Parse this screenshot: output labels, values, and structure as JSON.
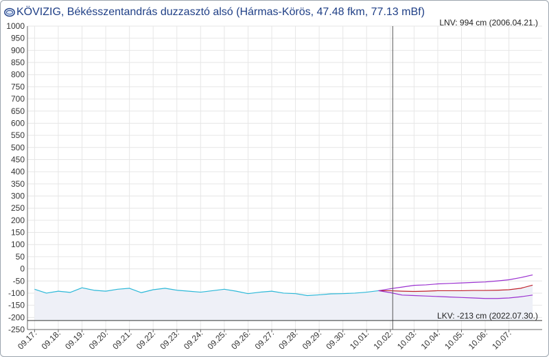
{
  "header": {
    "title": "KÖVIZIG, Békésszentandrás duzzasztó alsó (Hármas-Körös, 47.48 fkm, 77.13 mBf)"
  },
  "icons": {
    "logo": "globe-logo-icon"
  },
  "colors": {
    "observed": "#2bb8d8",
    "forecast_mid": "#c0202a",
    "forecast_band": "#9a30d0",
    "now_line": "#555555",
    "min_line": "#333333",
    "fill": "#eef0f7",
    "grid": "#e6e6e6"
  },
  "chart_data": {
    "type": "line",
    "title": "KÖVIZIG, Békésszentandrás duzzasztó alsó (Hármas-Körös, 47.48 fkm, 77.13 mBf)",
    "ylim": [
      -250,
      1000
    ],
    "y_ticks": [
      1000,
      950,
      900,
      850,
      800,
      750,
      700,
      650,
      600,
      550,
      500,
      450,
      400,
      350,
      300,
      250,
      200,
      150,
      100,
      50,
      0,
      -50,
      -100,
      -150,
      -200,
      -250
    ],
    "x_ticks": [
      "09.17.",
      "09.18.",
      "09.19.",
      "09.20.",
      "09.21.",
      "09.22.",
      "09.23.",
      "09.24.",
      "09.25.",
      "09.26.",
      "09.27.",
      "09.28.",
      "09.29.",
      "09.30.",
      "10.01.",
      "10.02.",
      "10.03.",
      "10.04.",
      "10.05.",
      "10.06.",
      "10.07."
    ],
    "x_range_days": [
      -0.3,
      21.4
    ],
    "now_day": 15.1,
    "grid": true,
    "annotations": {
      "max": "LNV: 994 cm (2006.04.21.)",
      "min": "LKV: -213 cm (2022.07.30.)",
      "min_value": -213
    },
    "series": [
      {
        "key": "observed",
        "x": [
          0,
          0.5,
          1,
          1.5,
          2,
          2.5,
          3,
          3.5,
          4,
          4.5,
          5,
          5.5,
          6,
          6.5,
          7,
          7.5,
          8,
          8.5,
          9,
          9.5,
          10,
          10.5,
          11,
          11.5,
          12,
          12.5,
          13,
          13.5,
          14,
          14.5
        ],
        "y": [
          -84,
          -100,
          -92,
          -97,
          -78,
          -88,
          -92,
          -84,
          -80,
          -98,
          -86,
          -80,
          -88,
          -92,
          -96,
          -90,
          -84,
          -92,
          -102,
          -96,
          -92,
          -100,
          -102,
          -110,
          -107,
          -103,
          -102,
          -100,
          -96,
          -90
        ]
      },
      {
        "key": "forecast_upper",
        "x": [
          14.5,
          15,
          15.5,
          16,
          16.5,
          17,
          17.5,
          18,
          18.5,
          19,
          19.5,
          20,
          20.5,
          21
        ],
        "y": [
          -90,
          -82,
          -75,
          -68,
          -66,
          -62,
          -60,
          -58,
          -56,
          -54,
          -50,
          -45,
          -36,
          -25
        ]
      },
      {
        "key": "forecast_mid",
        "x": [
          14.5,
          15,
          15.5,
          16,
          16.5,
          17,
          17.5,
          18,
          18.5,
          19,
          19.5,
          20,
          20.5,
          21
        ],
        "y": [
          -90,
          -90,
          -92,
          -93,
          -92,
          -90,
          -90,
          -90,
          -89,
          -89,
          -88,
          -86,
          -80,
          -67
        ]
      },
      {
        "key": "forecast_lower",
        "x": [
          14.5,
          15,
          15.5,
          16,
          16.5,
          17,
          17.5,
          18,
          18.5,
          19,
          19.5,
          20,
          20.5,
          21
        ],
        "y": [
          -90,
          -98,
          -108,
          -110,
          -112,
          -114,
          -116,
          -118,
          -120,
          -122,
          -122,
          -120,
          -115,
          -108
        ]
      }
    ]
  }
}
